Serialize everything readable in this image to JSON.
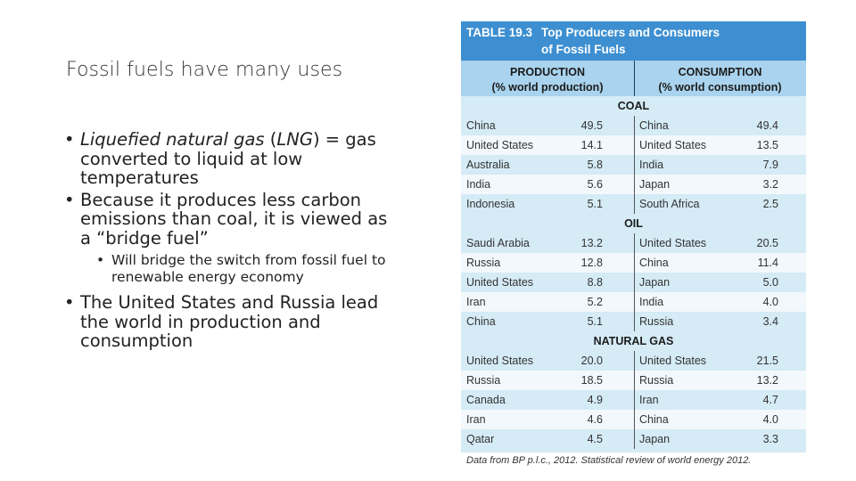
{
  "slide": {
    "title": "Fossil fuels have many uses",
    "bullets": {
      "b1_term": "Liquefied natural gas",
      "b1_paren_open": " (",
      "b1_abbr": "LNG",
      "b1_rest": ") = gas converted to liquid at low temperatures",
      "b2": "Because it produces less carbon emissions than coal, it is viewed as a “bridge fuel”",
      "b2_sub": "Will bridge the switch from fossil fuel to renewable energy economy",
      "b3": "The United States and Russia lead the world in production and consumption"
    },
    "bullet_glyph": "•"
  },
  "table": {
    "number": "TABLE 19.3",
    "title": "Top Producers and Consumers\nof Fossil Fuels",
    "columns": {
      "production": "PRODUCTION",
      "production_sub": "(% world production)",
      "consumption": "CONSUMPTION",
      "consumption_sub": "(% world consumption)"
    },
    "sections": [
      {
        "name": "COAL",
        "rows": [
          {
            "prod_country": "China",
            "prod_value": "49.5",
            "cons_country": "China",
            "cons_value": "49.4"
          },
          {
            "prod_country": "United States",
            "prod_value": "14.1",
            "cons_country": "United States",
            "cons_value": "13.5"
          },
          {
            "prod_country": "Australia",
            "prod_value": "5.8",
            "cons_country": "India",
            "cons_value": "7.9"
          },
          {
            "prod_country": "India",
            "prod_value": "5.6",
            "cons_country": "Japan",
            "cons_value": "3.2"
          },
          {
            "prod_country": "Indonesia",
            "prod_value": "5.1",
            "cons_country": "South Africa",
            "cons_value": "2.5"
          }
        ]
      },
      {
        "name": "OIL",
        "rows": [
          {
            "prod_country": "Saudi Arabia",
            "prod_value": "13.2",
            "cons_country": "United States",
            "cons_value": "20.5"
          },
          {
            "prod_country": "Russia",
            "prod_value": "12.8",
            "cons_country": "China",
            "cons_value": "11.4"
          },
          {
            "prod_country": "United States",
            "prod_value": "8.8",
            "cons_country": "Japan",
            "cons_value": "5.0"
          },
          {
            "prod_country": "Iran",
            "prod_value": "5.2",
            "cons_country": "India",
            "cons_value": "4.0"
          },
          {
            "prod_country": "China",
            "prod_value": "5.1",
            "cons_country": "Russia",
            "cons_value": "3.4"
          }
        ]
      },
      {
        "name": "NATURAL GAS",
        "rows": [
          {
            "prod_country": "United States",
            "prod_value": "20.0",
            "cons_country": "United States",
            "cons_value": "21.5"
          },
          {
            "prod_country": "Russia",
            "prod_value": "18.5",
            "cons_country": "Russia",
            "cons_value": "13.2"
          },
          {
            "prod_country": "Canada",
            "prod_value": "4.9",
            "cons_country": "Iran",
            "cons_value": "4.7"
          },
          {
            "prod_country": "Iran",
            "prod_value": "4.6",
            "cons_country": "China",
            "cons_value": "4.0"
          },
          {
            "prod_country": "Qatar",
            "prod_value": "4.5",
            "cons_country": "Japan",
            "cons_value": "3.3"
          }
        ]
      }
    ],
    "footer_prefix": "Data from BP p.l.c., 2012.",
    "footer_rest": " Statistical review of world energy 2012."
  },
  "colors": {
    "header_bg": "#3d8fd1",
    "colhead_bg": "#a9d3ee",
    "row_dark": "#d5ebf6",
    "row_light": "#f2f8fc"
  }
}
